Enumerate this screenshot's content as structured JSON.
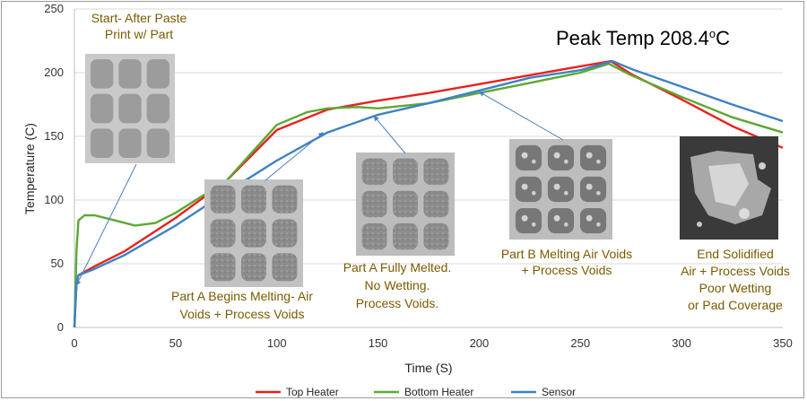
{
  "chart_data": {
    "type": "line",
    "xlabel": "Time (S)",
    "ylabel": "Temperature (C)",
    "xlim": [
      0,
      350
    ],
    "ylim": [
      0,
      250
    ],
    "xticks": [
      0,
      50,
      100,
      150,
      200,
      250,
      300,
      350
    ],
    "yticks": [
      0,
      50,
      100,
      150,
      200,
      250
    ],
    "grid": "horizontal",
    "legend_position": "bottom",
    "peak_label": "Peak Temp 208.4",
    "peak_label_sup": "o",
    "peak_label_unit": "C",
    "series": [
      {
        "name": "Top Heater",
        "color": "#e8211e",
        "x": [
          0,
          1,
          2,
          10,
          25,
          50,
          75,
          100,
          125,
          150,
          175,
          200,
          225,
          250,
          265,
          275,
          300,
          325,
          350
        ],
        "y": [
          0,
          35,
          41,
          48,
          60,
          86,
          115,
          155,
          171,
          178,
          184,
          191,
          198,
          205,
          209,
          199,
          179,
          158,
          141
        ]
      },
      {
        "name": "Bottom Heater",
        "color": "#5da833",
        "x": [
          0,
          1,
          2,
          5,
          10,
          20,
          30,
          40,
          50,
          75,
          100,
          115,
          125,
          140,
          150,
          175,
          200,
          225,
          250,
          264,
          275,
          300,
          325,
          350
        ],
        "y": [
          0,
          60,
          84,
          88,
          88,
          84,
          80,
          82,
          90,
          115,
          159,
          169,
          172,
          173,
          172,
          176,
          184,
          192,
          200,
          207,
          198,
          181,
          165,
          153
        ]
      },
      {
        "name": "Sensor",
        "color": "#3d82c4",
        "x": [
          0,
          1,
          2,
          10,
          25,
          50,
          75,
          100,
          125,
          150,
          175,
          200,
          225,
          250,
          266,
          275,
          300,
          325,
          350
        ],
        "y": [
          0,
          35,
          41,
          46,
          57,
          80,
          106,
          131,
          153,
          167,
          176,
          186,
          196,
          202,
          209,
          203,
          189,
          175,
          162
        ]
      }
    ],
    "annotations": [
      {
        "id": "start",
        "lines": [
          "Start- After Paste",
          "Print w/ Part"
        ],
        "target": [
          1,
          33
        ]
      },
      {
        "id": "part-a-begins",
        "lines": [
          "Part A Begins Melting- Air",
          "Voids + Process Voids"
        ],
        "target": [
          123,
          153
        ]
      },
      {
        "id": "part-a-melted",
        "lines": [
          "Part A Fully Melted.",
          "No Wetting.",
          "Process Voids."
        ],
        "target": [
          148,
          166
        ]
      },
      {
        "id": "part-b-melting",
        "lines": [
          "Part B Melting Air Voids",
          "+ Process Voids"
        ],
        "target": [
          200,
          185
        ]
      },
      {
        "id": "end-solidified",
        "lines": [
          "End Solidified",
          "Air + Process Voids",
          "Poor Wetting",
          "or Pad Coverage"
        ],
        "target": null
      }
    ]
  }
}
